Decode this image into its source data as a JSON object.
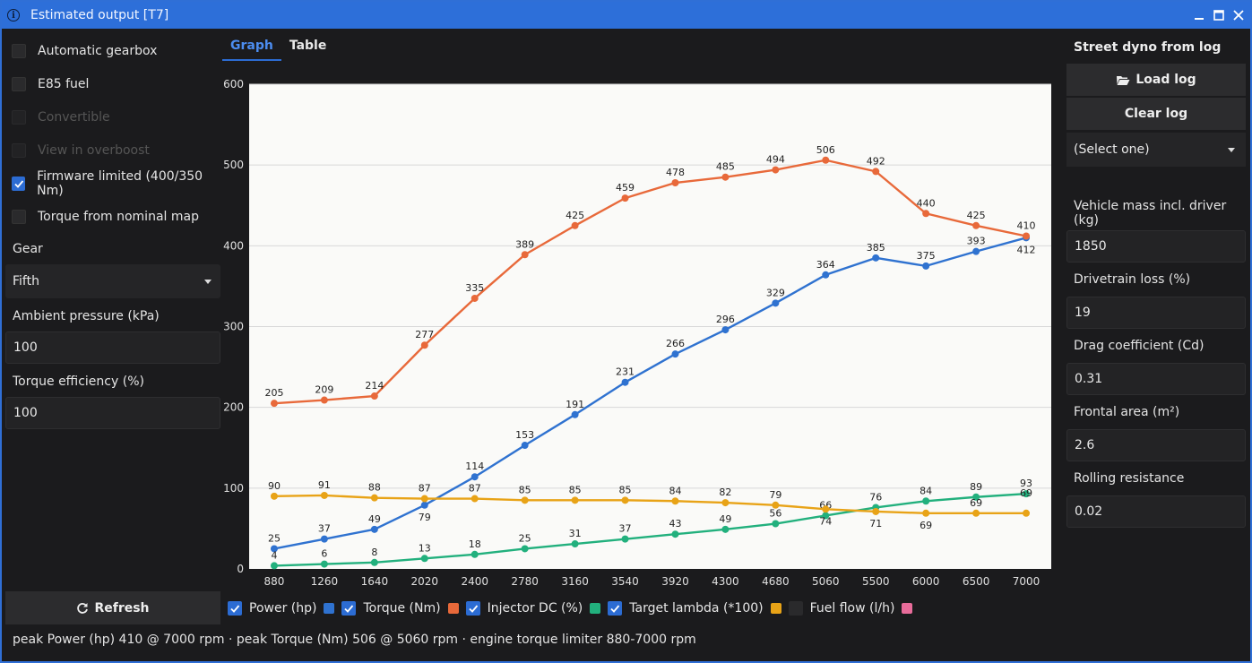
{
  "window": {
    "title": "Estimated output [T7]"
  },
  "left": {
    "checkboxes": [
      {
        "label": "Automatic gearbox",
        "checked": false,
        "disabled": false
      },
      {
        "label": "E85 fuel",
        "checked": false,
        "disabled": false
      },
      {
        "label": "Convertible",
        "checked": false,
        "disabled": true
      },
      {
        "label": "View in overboost",
        "checked": false,
        "disabled": true
      },
      {
        "label": "Firmware limited (400/350 Nm)",
        "checked": true,
        "disabled": false
      },
      {
        "label": "Torque from nominal map",
        "checked": false,
        "disabled": false
      }
    ],
    "gear_label": "Gear",
    "gear_value": "Fifth",
    "ambient_label": "Ambient pressure (kPa)",
    "ambient_value": "100",
    "efficiency_label": "Torque efficiency (%)",
    "efficiency_value": "100",
    "refresh_label": "Refresh"
  },
  "tabs": [
    {
      "label": "Graph",
      "active": true
    },
    {
      "label": "Table",
      "active": false
    }
  ],
  "legend": [
    {
      "label": "Power (hp)",
      "checked": true,
      "color": "#2f72d0"
    },
    {
      "label": "Torque (Nm)",
      "checked": true,
      "color": "#e8693a"
    },
    {
      "label": "Injector DC (%)",
      "checked": true,
      "color": "#22b07d"
    },
    {
      "label": "Target lambda (*100)",
      "checked": true,
      "color": "#e8a317"
    },
    {
      "label": "Fuel flow (l/h)",
      "checked": false,
      "color": "#e86c9a"
    }
  ],
  "footer": "peak Power (hp) 410 @ 7000 rpm · peak Torque (Nm) 506 @ 5060 rpm · engine torque limiter 880-7000 rpm",
  "right": {
    "title": "Street dyno from log",
    "load_label": "Load log",
    "clear_label": "Clear log",
    "select_value": "(Select one)",
    "mass_label": "Vehicle mass incl. driver (kg)",
    "mass_value": "1850",
    "loss_label": "Drivetrain loss (%)",
    "loss_value": "19",
    "drag_label": "Drag coefficient (Cd)",
    "drag_value": "0.31",
    "area_label": "Frontal area (m²)",
    "area_value": "2.6",
    "rolling_label": "Rolling resistance",
    "rolling_value": "0.02"
  },
  "chart_data": {
    "type": "line",
    "x": [
      880,
      1260,
      1640,
      2020,
      2400,
      2780,
      3160,
      3540,
      3920,
      4300,
      4680,
      5060,
      5500,
      6000,
      6500,
      7000
    ],
    "ylim": [
      0,
      600
    ],
    "yticks": [
      0,
      100,
      200,
      300,
      400,
      500,
      600
    ],
    "grid": true,
    "background": "#fafaf8",
    "series": [
      {
        "name": "Power (hp)",
        "color": "#2f72d0",
        "label_pos": "above",
        "values": [
          25,
          37,
          49,
          79,
          114,
          153,
          191,
          231,
          266,
          296,
          329,
          364,
          385,
          375,
          393,
          410
        ]
      },
      {
        "name": "Torque (Nm)",
        "color": "#e8693a",
        "label_pos": "above",
        "values": [
          205,
          209,
          214,
          277,
          335,
          389,
          425,
          459,
          478,
          485,
          494,
          506,
          492,
          440,
          425,
          412
        ]
      },
      {
        "name": "Injector DC (%)",
        "color": "#22b07d",
        "label_pos": "above",
        "values": [
          4,
          6,
          8,
          13,
          18,
          25,
          31,
          37,
          43,
          49,
          56,
          66,
          76,
          84,
          89,
          93
        ]
      },
      {
        "name": "Target lambda (*100)",
        "color": "#e8a317",
        "label_pos": "above",
        "values": [
          90,
          91,
          88,
          87,
          87,
          85,
          85,
          85,
          84,
          82,
          79,
          74,
          71,
          69,
          69,
          69
        ]
      }
    ]
  }
}
